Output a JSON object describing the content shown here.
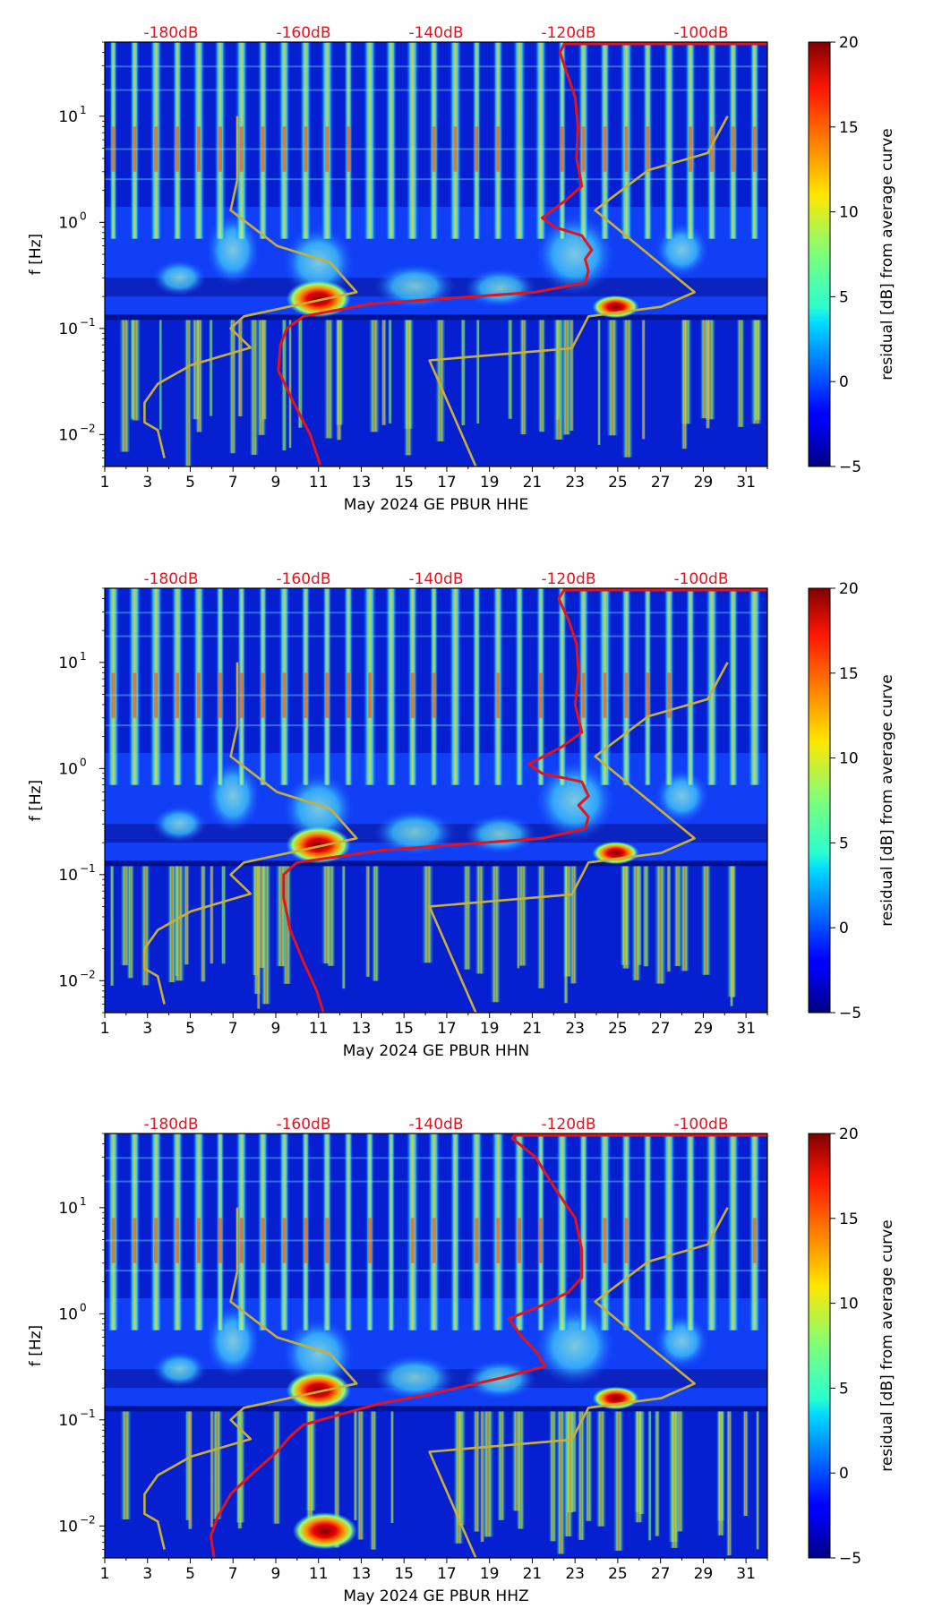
{
  "chart_data": [
    {
      "type": "heatmap",
      "xlabel": "May 2024 GE PBUR  HHE",
      "ylabel": "f [Hz]",
      "colorbar_label": "residual [dB] from average curve",
      "colorbar_range": [
        -5,
        20
      ],
      "colorbar_ticks": [
        "20",
        "15",
        "10",
        "5",
        "0",
        "−5"
      ],
      "x_range": [
        1,
        32
      ],
      "y_range_hz": [
        0.005,
        50
      ],
      "y_scale": "log",
      "x_ticks": [
        "1",
        "3",
        "5",
        "7",
        "9",
        "11",
        "13",
        "15",
        "17",
        "19",
        "21",
        "23",
        "25",
        "27",
        "29",
        "31"
      ],
      "top_ticks": [
        "-180dB",
        "-160dB",
        "-140dB",
        "-120dB",
        "-100dB"
      ],
      "hotspots": [
        {
          "day": 11.0,
          "f_hz": 0.19,
          "level_db": 20
        },
        {
          "day": 24.9,
          "f_hz": 0.16,
          "level_db": 18
        }
      ],
      "series": [
        {
          "color": "#e0141e",
          "points": [
            [
              -120.5,
              50
            ],
            [
              -121.3,
              40
            ],
            [
              -120.2,
              25
            ],
            [
              -119.0,
              15
            ],
            [
              -118.6,
              8
            ],
            [
              -118.8,
              4
            ],
            [
              -118.0,
              2.2
            ],
            [
              -120.5,
              1.6
            ],
            [
              -124.0,
              1.1
            ],
            [
              -122.0,
              0.9
            ],
            [
              -118.0,
              0.75
            ],
            [
              -116.5,
              0.55
            ],
            [
              -117.5,
              0.45
            ],
            [
              -117.0,
              0.35
            ],
            [
              -117.5,
              0.27
            ],
            [
              -125.0,
              0.22
            ],
            [
              -150.0,
              0.17
            ],
            [
              -160.0,
              0.13
            ],
            [
              -162.5,
              0.1
            ],
            [
              -163.5,
              0.07
            ],
            [
              -163.8,
              0.04
            ],
            [
              -161.5,
              0.02
            ],
            [
              -159.0,
              0.01
            ],
            [
              -157.5,
              0.0052
            ]
          ]
        },
        {
          "color": "#c7b03a",
          "points": [
            [
              -170.0,
              10
            ],
            [
              -170.0,
              2.5
            ],
            [
              -171.0,
              1.3
            ],
            [
              -164.0,
              0.6
            ],
            [
              -156.0,
              0.42
            ],
            [
              -152.0,
              0.22
            ],
            [
              -169.0,
              0.13
            ],
            [
              -171.0,
              0.1
            ],
            [
              -168.0,
              0.066
            ],
            [
              -177.0,
              0.045
            ],
            [
              -182.0,
              0.03
            ],
            [
              -184.0,
              0.02
            ],
            [
              -184.0,
              0.013
            ],
            [
              -182.0,
              0.011
            ],
            [
              -181.0,
              0.006
            ]
          ]
        },
        {
          "color": "#c7b03a",
          "points": [
            [
              -96.0,
              10
            ],
            [
              -99.0,
              4.5
            ],
            [
              -108.0,
              3.1
            ],
            [
              -116.0,
              1.3
            ],
            [
              -101.0,
              0.22
            ],
            [
              -106.0,
              0.16
            ],
            [
              -117.0,
              0.13
            ],
            [
              -119.5,
              0.065
            ],
            [
              -141.0,
              0.05
            ],
            [
              -134.0,
              0.005
            ]
          ]
        }
      ]
    },
    {
      "type": "heatmap",
      "xlabel": "May 2024 GE PBUR  HHN",
      "ylabel": "f [Hz]",
      "colorbar_label": "residual [dB] from average curve",
      "colorbar_range": [
        -5,
        20
      ],
      "colorbar_ticks": [
        "20",
        "15",
        "10",
        "5",
        "0",
        "−5"
      ],
      "x_range": [
        1,
        32
      ],
      "y_range_hz": [
        0.005,
        50
      ],
      "y_scale": "log",
      "x_ticks": [
        "1",
        "3",
        "5",
        "7",
        "9",
        "11",
        "13",
        "15",
        "17",
        "19",
        "21",
        "23",
        "25",
        "27",
        "29",
        "31"
      ],
      "top_ticks": [
        "-180dB",
        "-160dB",
        "-140dB",
        "-120dB",
        "-100dB"
      ],
      "hotspots": [
        {
          "day": 11.0,
          "f_hz": 0.19,
          "level_db": 20
        },
        {
          "day": 24.9,
          "f_hz": 0.16,
          "level_db": 18
        }
      ],
      "series": [
        {
          "color": "#e0141e",
          "points": [
            [
              -120.5,
              50
            ],
            [
              -121.5,
              40
            ],
            [
              -120.0,
              25
            ],
            [
              -118.8,
              15
            ],
            [
              -118.5,
              8
            ],
            [
              -119.0,
              4
            ],
            [
              -118.0,
              2.2
            ],
            [
              -121.0,
              1.6
            ],
            [
              -126.0,
              1.1
            ],
            [
              -124.0,
              0.9
            ],
            [
              -118.0,
              0.75
            ],
            [
              -117.0,
              0.55
            ],
            [
              -118.5,
              0.45
            ],
            [
              -117.0,
              0.35
            ],
            [
              -117.5,
              0.27
            ],
            [
              -124.0,
              0.22
            ],
            [
              -148.0,
              0.17
            ],
            [
              -161.0,
              0.13
            ],
            [
              -163.0,
              0.1
            ],
            [
              -163.0,
              0.06
            ],
            [
              -162.0,
              0.03
            ],
            [
              -160.0,
              0.015
            ],
            [
              -158.0,
              0.008
            ],
            [
              -157.0,
              0.005
            ]
          ]
        },
        {
          "color": "#c7b03a",
          "points": [
            [
              -170.0,
              10
            ],
            [
              -170.0,
              2.5
            ],
            [
              -171.0,
              1.3
            ],
            [
              -164.0,
              0.6
            ],
            [
              -156.0,
              0.42
            ],
            [
              -152.0,
              0.22
            ],
            [
              -169.0,
              0.13
            ],
            [
              -171.0,
              0.1
            ],
            [
              -168.0,
              0.066
            ],
            [
              -177.0,
              0.045
            ],
            [
              -182.0,
              0.03
            ],
            [
              -184.0,
              0.02
            ],
            [
              -184.0,
              0.013
            ],
            [
              -182.0,
              0.011
            ],
            [
              -181.0,
              0.006
            ]
          ]
        },
        {
          "color": "#c7b03a",
          "points": [
            [
              -96.0,
              10
            ],
            [
              -99.0,
              4.5
            ],
            [
              -108.0,
              3.1
            ],
            [
              -116.0,
              1.3
            ],
            [
              -101.0,
              0.22
            ],
            [
              -106.0,
              0.16
            ],
            [
              -117.0,
              0.13
            ],
            [
              -119.5,
              0.065
            ],
            [
              -141.0,
              0.05
            ],
            [
              -134.0,
              0.005
            ]
          ]
        }
      ]
    },
    {
      "type": "heatmap",
      "xlabel": "May 2024 GE PBUR  HHZ",
      "ylabel": "f [Hz]",
      "colorbar_label": "residual [dB] from average curve",
      "colorbar_range": [
        -5,
        20
      ],
      "colorbar_ticks": [
        "20",
        "15",
        "10",
        "5",
        "0",
        "−5"
      ],
      "x_range": [
        1,
        32
      ],
      "y_range_hz": [
        0.005,
        50
      ],
      "y_scale": "log",
      "x_ticks": [
        "1",
        "3",
        "5",
        "7",
        "9",
        "11",
        "13",
        "15",
        "17",
        "19",
        "21",
        "23",
        "25",
        "27",
        "29",
        "31"
      ],
      "top_ticks": [
        "-180dB",
        "-160dB",
        "-140dB",
        "-120dB",
        "-100dB"
      ],
      "hotspots": [
        {
          "day": 11.0,
          "f_hz": 0.19,
          "level_db": 20
        },
        {
          "day": 24.9,
          "f_hz": 0.16,
          "level_db": 18
        },
        {
          "day": 11.3,
          "f_hz": 0.009,
          "level_db": 20
        }
      ],
      "series": [
        {
          "color": "#e0141e",
          "points": [
            [
              -128.0,
              50
            ],
            [
              -128.5,
              45
            ],
            [
              -125.0,
              30
            ],
            [
              -122.0,
              15
            ],
            [
              -119.0,
              8
            ],
            [
              -118.0,
              4
            ],
            [
              -118.0,
              2.2
            ],
            [
              -120.0,
              1.6
            ],
            [
              -124.0,
              1.2
            ],
            [
              -129.0,
              0.9
            ],
            [
              -127.0,
              0.6
            ],
            [
              -125.0,
              0.45
            ],
            [
              -123.5,
              0.32
            ],
            [
              -130.0,
              0.25
            ],
            [
              -140.0,
              0.18
            ],
            [
              -149.0,
              0.14
            ],
            [
              -155.0,
              0.11
            ],
            [
              -160.0,
              0.09
            ],
            [
              -162.0,
              0.07
            ],
            [
              -164.0,
              0.05
            ],
            [
              -168.0,
              0.03
            ],
            [
              -171.0,
              0.02
            ],
            [
              -173.0,
              0.012
            ],
            [
              -174.0,
              0.008
            ],
            [
              -173.5,
              0.005
            ]
          ]
        },
        {
          "color": "#c7b03a",
          "points": [
            [
              -170.0,
              10
            ],
            [
              -170.0,
              2.5
            ],
            [
              -171.0,
              1.3
            ],
            [
              -164.0,
              0.6
            ],
            [
              -156.0,
              0.42
            ],
            [
              -152.0,
              0.22
            ],
            [
              -169.0,
              0.13
            ],
            [
              -171.0,
              0.1
            ],
            [
              -168.0,
              0.066
            ],
            [
              -177.0,
              0.045
            ],
            [
              -182.0,
              0.03
            ],
            [
              -184.0,
              0.02
            ],
            [
              -184.0,
              0.013
            ],
            [
              -182.0,
              0.011
            ],
            [
              -181.0,
              0.006
            ]
          ]
        },
        {
          "color": "#c7b03a",
          "points": [
            [
              -96.0,
              10
            ],
            [
              -99.0,
              4.5
            ],
            [
              -108.0,
              3.1
            ],
            [
              -116.0,
              1.3
            ],
            [
              -101.0,
              0.22
            ],
            [
              -106.0,
              0.16
            ],
            [
              -117.0,
              0.13
            ],
            [
              -119.5,
              0.065
            ],
            [
              -141.0,
              0.05
            ],
            [
              -134.0,
              0.005
            ]
          ]
        }
      ]
    }
  ]
}
